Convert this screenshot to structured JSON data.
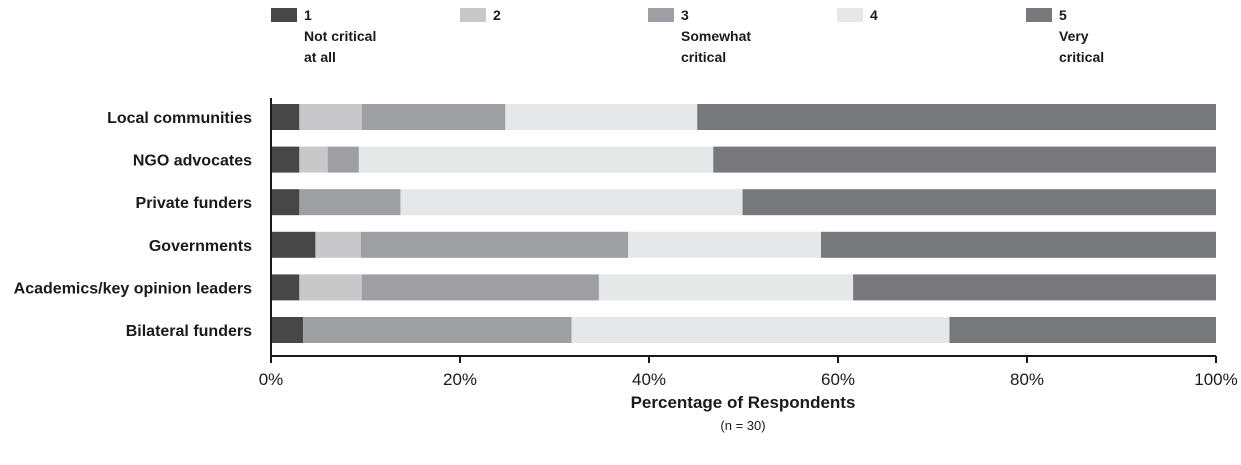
{
  "chart_data": {
    "type": "bar",
    "orientation": "horizontal",
    "stacked": true,
    "categories": [
      "Local communities",
      "NGO advocates",
      "Private funders",
      "Governments",
      "Academics/key opinion leaders",
      "Bilateral funders"
    ],
    "series": [
      {
        "name": "1",
        "sublabel": [
          "Not critical",
          "at all"
        ],
        "color": "#474747",
        "values": [
          3,
          3,
          3,
          4.7,
          3,
          3.4
        ]
      },
      {
        "name": "2",
        "sublabel": [],
        "color": "#c8c8ca",
        "values": [
          6.6,
          3,
          0,
          4.8,
          6.6,
          0
        ]
      },
      {
        "name": "3",
        "sublabel": [
          "Somewhat",
          "critical"
        ],
        "color": "#9e9fa2",
        "values": [
          15.2,
          3.3,
          10.7,
          28.3,
          25.1,
          28.4
        ]
      },
      {
        "name": "4",
        "sublabel": [],
        "color": "#e6e7e8",
        "values": [
          20.3,
          37.5,
          36.2,
          20.4,
          26.9,
          40
        ]
      },
      {
        "name": "5",
        "sublabel": [
          "Very",
          "critical"
        ],
        "color": "#77787b",
        "values": [
          54.9,
          53.2,
          50.1,
          41.8,
          38.4,
          28.2
        ]
      }
    ],
    "xlim": [
      0,
      100
    ],
    "xticks": [
      "0%",
      "20%",
      "40%",
      "60%",
      "80%",
      "100%"
    ],
    "xlabel": "Percentage of Respondents",
    "xlabel_note": "(n = 30)",
    "grid": false,
    "legend_position": "top"
  }
}
